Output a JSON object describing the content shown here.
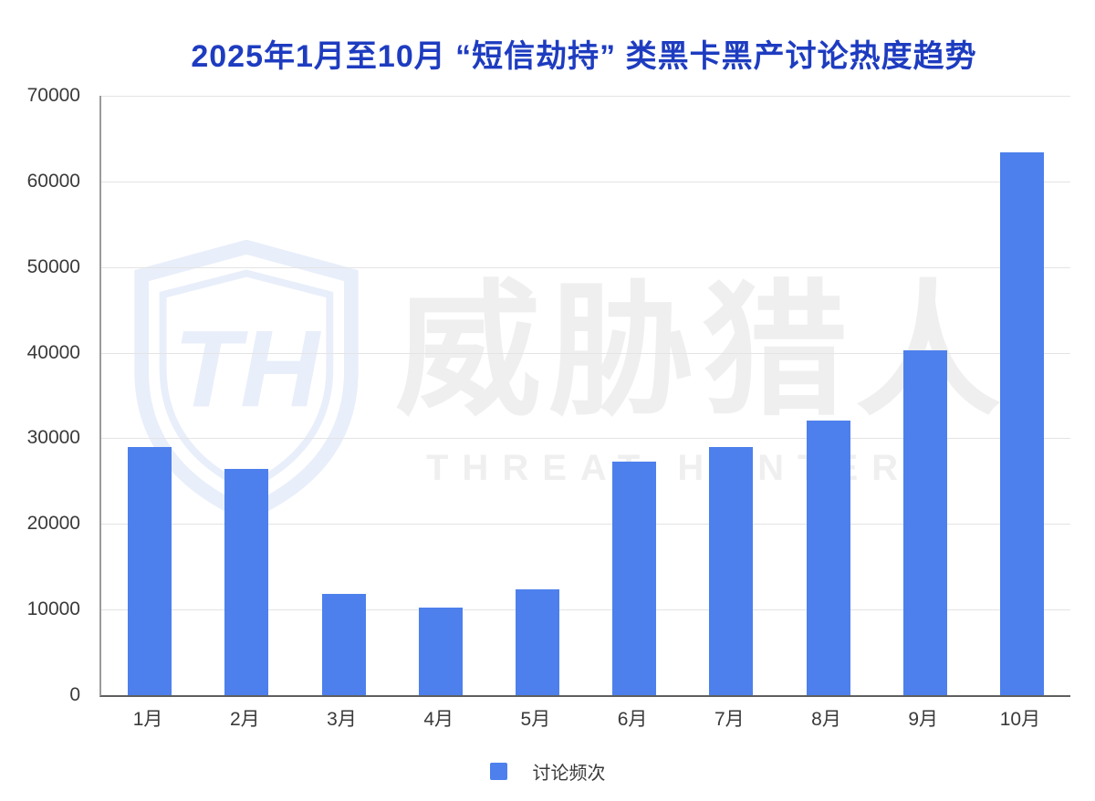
{
  "title": "2025年1月至10月 “短信劫持” 类黑卡黑产讨论热度趋势",
  "legend": {
    "label": "讨论频次",
    "swatch_color": "#4D80EC"
  },
  "watermark": {
    "logo": "threat-hunter-shield",
    "logo_monogram": "TH",
    "cn": "威胁猎人",
    "en": "THREAT HUNTER"
  },
  "colors": {
    "bar": "#4D80EC",
    "title": "#1E3CC0",
    "gridline": "#E4E4E4",
    "axis_y": "#9A9A9A",
    "axis_x": "#5F5F5F",
    "tick_label": "#3A3A3A",
    "watermark_gray": "#EFEFEF",
    "watermark_blue": "#E8EEFA",
    "background": "#FFFFFF"
  },
  "chart_data": {
    "type": "bar",
    "title": "2025年1月至10月 “短信劫持” 类黑卡黑产讨论热度趋势",
    "categories": [
      "1月",
      "2月",
      "3月",
      "4月",
      "5月",
      "6月",
      "7月",
      "8月",
      "9月",
      "10月"
    ],
    "series": [
      {
        "name": "讨论频次",
        "values": [
          29000,
          26400,
          11800,
          10200,
          12400,
          27300,
          29000,
          32100,
          40300,
          63400
        ]
      }
    ],
    "xlabel": "",
    "ylabel": "",
    "ylim": [
      0,
      70000
    ],
    "yticks": [
      0,
      10000,
      20000,
      30000,
      40000,
      50000,
      60000,
      70000
    ],
    "grid": true,
    "legend_position": "bottom",
    "bar_color": "#4D80EC"
  }
}
